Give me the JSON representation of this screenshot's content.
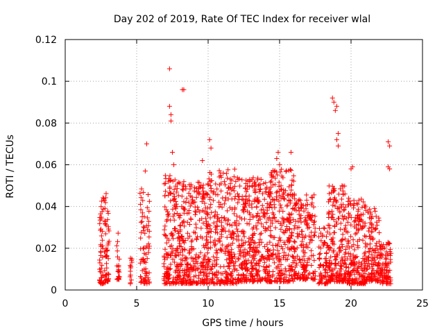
{
  "chart_data": {
    "type": "scatter",
    "title": "Day 202 of 2019, Rate Of TEC Index for receiver wlal",
    "xlabel": "GPS time / hours",
    "ylabel": "ROTI / TECUs",
    "xlim": [
      0,
      25
    ],
    "ylim": [
      0,
      0.12
    ],
    "xticks": [
      "0",
      "5",
      "10",
      "15",
      "20",
      "25"
    ],
    "yticks": [
      "0",
      "0.02",
      "0.04",
      "0.06",
      "0.08",
      "0.1",
      "0.12"
    ],
    "grid": true,
    "marker": "plus",
    "color": "#ff0000",
    "outliers": [
      {
        "x": 7.3,
        "y": 0.106
      },
      {
        "x": 8.2,
        "y": 0.096
      },
      {
        "x": 8.3,
        "y": 0.096
      },
      {
        "x": 7.3,
        "y": 0.088
      },
      {
        "x": 7.4,
        "y": 0.084
      },
      {
        "x": 7.4,
        "y": 0.081
      },
      {
        "x": 5.7,
        "y": 0.07
      },
      {
        "x": 10.1,
        "y": 0.072
      },
      {
        "x": 10.2,
        "y": 0.068
      },
      {
        "x": 14.9,
        "y": 0.066
      },
      {
        "x": 15.8,
        "y": 0.066
      },
      {
        "x": 18.7,
        "y": 0.092
      },
      {
        "x": 18.8,
        "y": 0.09
      },
      {
        "x": 19.0,
        "y": 0.088
      },
      {
        "x": 18.9,
        "y": 0.086
      },
      {
        "x": 19.1,
        "y": 0.075
      },
      {
        "x": 19.0,
        "y": 0.072
      },
      {
        "x": 19.1,
        "y": 0.069
      },
      {
        "x": 22.6,
        "y": 0.071
      },
      {
        "x": 22.7,
        "y": 0.069
      },
      {
        "x": 20.1,
        "y": 0.059
      },
      {
        "x": 20.0,
        "y": 0.058
      },
      {
        "x": 9.6,
        "y": 0.062
      },
      {
        "x": 7.5,
        "y": 0.066
      },
      {
        "x": 7.6,
        "y": 0.06
      },
      {
        "x": 5.6,
        "y": 0.057
      },
      {
        "x": 14.8,
        "y": 0.063
      },
      {
        "x": 15.0,
        "y": 0.06
      },
      {
        "x": 22.6,
        "y": 0.059
      },
      {
        "x": 22.7,
        "y": 0.058
      }
    ],
    "clusters": [
      {
        "x0": 2.4,
        "x1": 2.9,
        "ymin": 0.003,
        "ymax": 0.048,
        "density": 70
      },
      {
        "x0": 2.9,
        "x1": 3.1,
        "ymin": 0.004,
        "ymax": 0.038,
        "density": 25
      },
      {
        "x0": 3.6,
        "x1": 3.8,
        "ymin": 0.005,
        "ymax": 0.029,
        "density": 20
      },
      {
        "x0": 4.5,
        "x1": 4.7,
        "ymin": 0.003,
        "ymax": 0.018,
        "density": 12
      },
      {
        "x0": 5.2,
        "x1": 5.9,
        "ymin": 0.003,
        "ymax": 0.05,
        "density": 70
      },
      {
        "x0": 6.9,
        "x1": 7.8,
        "ymin": 0.003,
        "ymax": 0.055,
        "density": 130
      },
      {
        "x0": 7.8,
        "x1": 9.8,
        "ymin": 0.003,
        "ymax": 0.052,
        "density": 280
      },
      {
        "x0": 9.8,
        "x1": 12.0,
        "ymin": 0.003,
        "ymax": 0.058,
        "density": 300
      },
      {
        "x0": 12.0,
        "x1": 14.3,
        "ymin": 0.004,
        "ymax": 0.054,
        "density": 350
      },
      {
        "x0": 14.3,
        "x1": 16.0,
        "ymin": 0.004,
        "ymax": 0.058,
        "density": 240
      },
      {
        "x0": 16.0,
        "x1": 17.5,
        "ymin": 0.005,
        "ymax": 0.046,
        "density": 180
      },
      {
        "x0": 17.7,
        "x1": 18.4,
        "ymin": 0.003,
        "ymax": 0.03,
        "density": 70
      },
      {
        "x0": 18.4,
        "x1": 19.6,
        "ymin": 0.004,
        "ymax": 0.05,
        "density": 180
      },
      {
        "x0": 19.6,
        "x1": 21.0,
        "ymin": 0.003,
        "ymax": 0.044,
        "density": 200
      },
      {
        "x0": 21.0,
        "x1": 22.0,
        "ymin": 0.004,
        "ymax": 0.04,
        "density": 120
      },
      {
        "x0": 22.0,
        "x1": 22.8,
        "ymin": 0.003,
        "ymax": 0.023,
        "density": 90
      }
    ]
  }
}
